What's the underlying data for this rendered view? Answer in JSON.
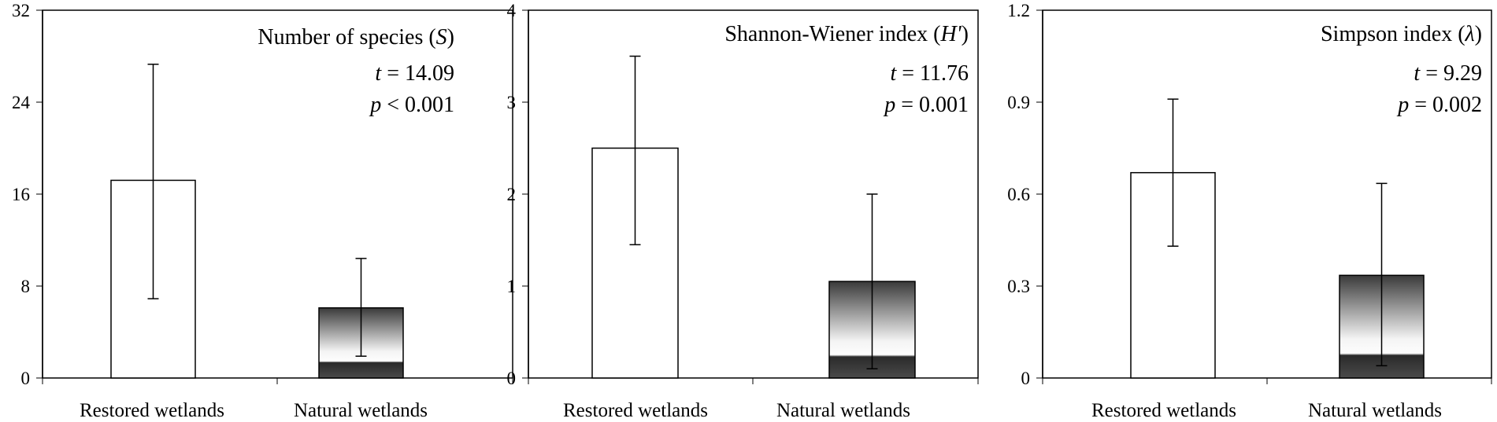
{
  "charts": [
    {
      "title_parts": [
        "Number of species (",
        "S",
        ")"
      ],
      "t_label": "t",
      "t_rest": " = 14.09",
      "p_label": "p",
      "p_rest": " < 0.001",
      "yticks": [
        "0",
        "8",
        "16",
        "24",
        "32"
      ]
    },
    {
      "title_parts": [
        "Shannon-Wiener index (",
        "H'",
        ")"
      ],
      "t_label": "t",
      "t_rest": " = 11.76",
      "p_label": "p",
      "p_rest": " = 0.001",
      "yticks": [
        "0",
        "1",
        "2",
        "3",
        "4"
      ]
    },
    {
      "title_parts": [
        "Simpson index (",
        "λ",
        ")"
      ],
      "t_label": "t",
      "t_rest": " = 9.29",
      "p_label": "p",
      "p_rest": " = 0.002",
      "yticks": [
        "0",
        "0.3",
        "0.6",
        "0.9",
        "1.2"
      ]
    }
  ],
  "chart_data": [
    {
      "type": "bar",
      "categories": [
        "Restored wetlands",
        "Natural wetlands"
      ],
      "values": [
        17.2,
        6.1
      ],
      "error_low": [
        6.9,
        1.9
      ],
      "error_high": [
        27.3,
        10.4
      ],
      "ylim": [
        0,
        32
      ],
      "yticks": [
        0,
        8,
        16,
        24,
        32
      ],
      "fills": [
        "white",
        "gradient"
      ]
    },
    {
      "type": "bar",
      "categories": [
        "Restored wetlands",
        "Natural wetlands"
      ],
      "values": [
        2.5,
        1.05
      ],
      "error_low": [
        1.45,
        0.1
      ],
      "error_high": [
        3.5,
        2.0
      ],
      "ylim": [
        0,
        4
      ],
      "yticks": [
        0,
        1,
        2,
        3,
        4
      ],
      "fills": [
        "white",
        "gradient"
      ]
    },
    {
      "type": "bar",
      "categories": [
        "Restored wetlands",
        "Natural wetlands"
      ],
      "values": [
        0.67,
        0.335
      ],
      "error_low": [
        0.43,
        0.04
      ],
      "error_high": [
        0.91,
        0.635
      ],
      "ylim": [
        0,
        1.2
      ],
      "yticks": [
        0,
        0.3,
        0.6,
        0.9,
        1.2
      ],
      "fills": [
        "white",
        "gradient"
      ]
    }
  ]
}
